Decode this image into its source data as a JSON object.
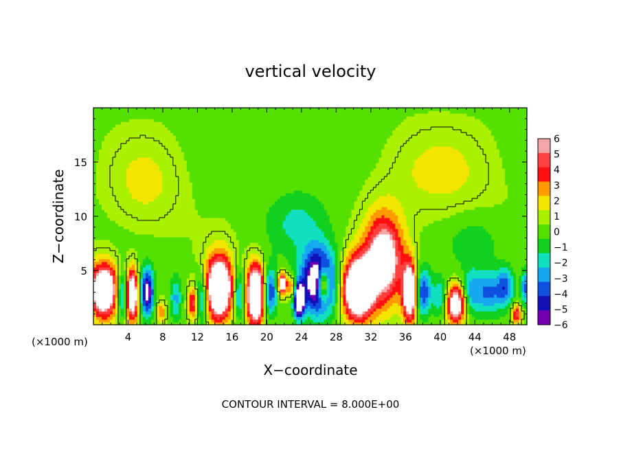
{
  "chart_data": {
    "type": "heatmap",
    "title": "vertical velocity",
    "xlabel": "X−coordinate",
    "ylabel": "Z−coordinate",
    "x_unit_left": "(×1000 m)",
    "x_unit_right": "(×1000 m)",
    "footer": "CONTOUR INTERVAL = 8.000E+00",
    "xlim": [
      0,
      50
    ],
    "ylim": [
      0,
      20
    ],
    "x_ticks": [
      4,
      8,
      12,
      16,
      20,
      24,
      28,
      32,
      36,
      40,
      44,
      48
    ],
    "y_ticks": [
      5,
      10,
      15
    ],
    "colorbar": {
      "range": [
        -6,
        6
      ],
      "labels": [
        "6",
        "5",
        "4",
        "3",
        "2",
        "1",
        "0",
        "−1",
        "−2",
        "−3",
        "−4",
        "−5",
        "−6"
      ],
      "colors": [
        "#f4a7a7",
        "#ff4040",
        "#ff1010",
        "#ff9a00",
        "#f2e600",
        "#aaf000",
        "#55e000",
        "#12d020",
        "#10e0c0",
        "#18a8f0",
        "#1050e0",
        "#1010b8",
        "#7000b0"
      ]
    },
    "blobs": [
      {
        "x": 1.2,
        "z": 3.2,
        "w": 10,
        "rx": 1.6,
        "rz": 2.4
      },
      {
        "x": 3.3,
        "z": 2.8,
        "w": -5,
        "rx": 0.6,
        "rz": 2.0
      },
      {
        "x": 4.5,
        "z": 2.8,
        "w": 9,
        "rx": 0.7,
        "rz": 2.3
      },
      {
        "x": 6.2,
        "z": 3.0,
        "w": -7,
        "rx": 0.8,
        "rz": 2.2
      },
      {
        "x": 7.8,
        "z": 1.2,
        "w": 3,
        "rx": 0.6,
        "rz": 1.0
      },
      {
        "x": 9.5,
        "z": 2.5,
        "w": -3,
        "rx": 0.7,
        "rz": 2.0
      },
      {
        "x": 11.5,
        "z": 2.0,
        "w": 5,
        "rx": 0.6,
        "rz": 1.5
      },
      {
        "x": 12.5,
        "z": 2.5,
        "w": -4,
        "rx": 0.7,
        "rz": 2.2
      },
      {
        "x": 14.5,
        "z": 3.4,
        "w": 11,
        "rx": 1.5,
        "rz": 2.9
      },
      {
        "x": 16.8,
        "z": 2.8,
        "w": -4,
        "rx": 0.6,
        "rz": 2.2
      },
      {
        "x": 18.7,
        "z": 2.8,
        "w": 11,
        "rx": 1.0,
        "rz": 2.7
      },
      {
        "x": 20.4,
        "z": 3.0,
        "w": -5,
        "rx": 0.8,
        "rz": 2.2
      },
      {
        "x": 21.8,
        "z": 3.8,
        "w": 8,
        "rx": 0.5,
        "rz": 1.0
      },
      {
        "x": 22.9,
        "z": 3.5,
        "w": 4,
        "rx": 0.5,
        "rz": 1.0
      },
      {
        "x": 23.7,
        "z": 2.2,
        "w": -9,
        "rx": 0.6,
        "rz": 1.6
      },
      {
        "x": 26.0,
        "z": 4.0,
        "w": -9,
        "rx": 2.0,
        "rz": 3.0
      },
      {
        "x": 26.5,
        "z": 3.8,
        "w": 8,
        "rx": 0.7,
        "rz": 1.6
      },
      {
        "x": 23.5,
        "z": 9.5,
        "w": -2,
        "rx": 3.5,
        "rz": 3.0
      },
      {
        "x": 30.5,
        "z": 3.3,
        "w": 11,
        "rx": 1.8,
        "rz": 2.8
      },
      {
        "x": 33.5,
        "z": 6.0,
        "w": 8,
        "rx": 2.2,
        "rz": 4.0
      },
      {
        "x": 36.5,
        "z": 3.0,
        "w": 10,
        "rx": 0.8,
        "rz": 2.6
      },
      {
        "x": 38.0,
        "z": 3.0,
        "w": -5,
        "rx": 1.0,
        "rz": 2.2
      },
      {
        "x": 40.0,
        "z": 2.5,
        "w": -3,
        "rx": 0.8,
        "rz": 1.8
      },
      {
        "x": 41.8,
        "z": 1.9,
        "w": 8,
        "rx": 1.1,
        "rz": 1.7
      },
      {
        "x": 43.5,
        "z": 3.0,
        "w": -3,
        "rx": 1.0,
        "rz": 2.0
      },
      {
        "x": 45.5,
        "z": 3.0,
        "w": -4,
        "rx": 1.5,
        "rz": 2.0
      },
      {
        "x": 47.5,
        "z": 3.5,
        "w": -4,
        "rx": 1.0,
        "rz": 1.8
      },
      {
        "x": 48.8,
        "z": 1.0,
        "w": 5,
        "rx": 0.6,
        "rz": 0.9
      },
      {
        "x": 49.8,
        "z": 3.5,
        "w": -4,
        "rx": 0.5,
        "rz": 1.6
      },
      {
        "x": 44.0,
        "z": 7.5,
        "w": -1.5,
        "rx": 3.0,
        "rz": 2.5
      },
      {
        "x": 6.0,
        "z": 13.0,
        "w": 1.5,
        "rx": 4.0,
        "rz": 4.0
      },
      {
        "x": 40.0,
        "z": 14.0,
        "w": 1.5,
        "rx": 6.0,
        "rz": 4.0
      }
    ]
  }
}
